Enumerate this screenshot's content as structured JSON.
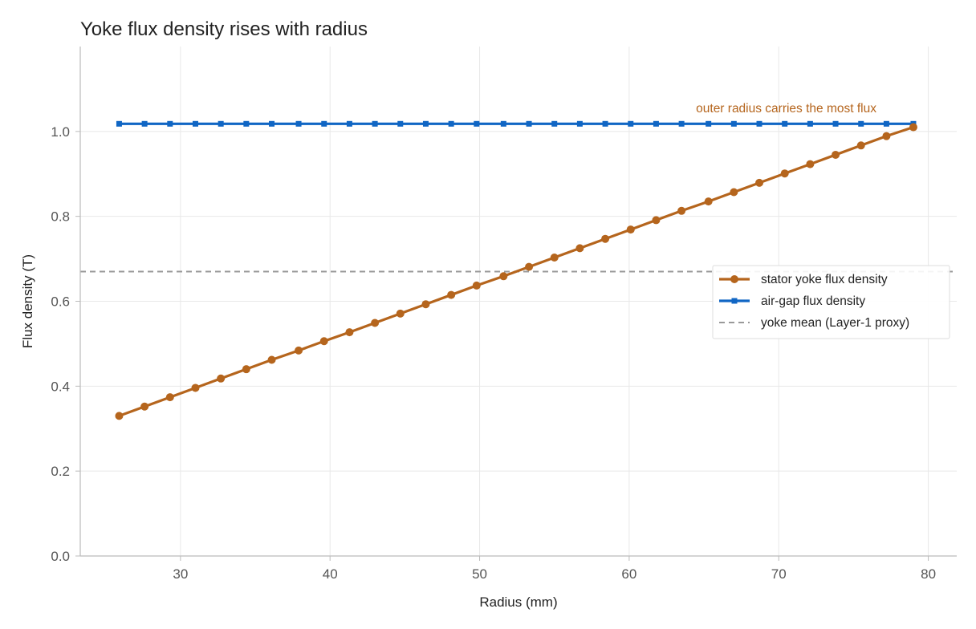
{
  "chart_data": {
    "type": "line",
    "title": "Yoke flux density rises with radius",
    "xlabel": "Radius (mm)",
    "ylabel": "Flux density (T)",
    "xlim": [
      23.3,
      81.9
    ],
    "ylim": [
      0,
      1.2
    ],
    "xticks": [
      30,
      40,
      50,
      60,
      70,
      80
    ],
    "yticks": [
      0.0,
      0.2,
      0.4,
      0.6,
      0.8,
      1.0
    ],
    "xtick_labels": [
      "30",
      "40",
      "50",
      "60",
      "70",
      "80"
    ],
    "ytick_labels": [
      "0.0",
      "0.2",
      "0.4",
      "0.6",
      "0.8",
      "1.0"
    ],
    "grid": true,
    "legend_position": "center-right",
    "x": [
      25.9,
      27.6,
      29.3,
      31.0,
      32.7,
      34.4,
      36.1,
      37.9,
      39.6,
      41.3,
      43.0,
      44.7,
      46.4,
      48.1,
      49.8,
      51.6,
      53.3,
      55.0,
      56.7,
      58.4,
      60.1,
      61.8,
      63.5,
      65.3,
      67.0,
      68.7,
      70.4,
      72.1,
      73.8,
      75.5,
      77.2,
      79.0
    ],
    "series": [
      {
        "name": "stator yoke flux density",
        "color": "#b5651d",
        "marker": "circle",
        "values": [
          0.33,
          0.352,
          0.374,
          0.396,
          0.418,
          0.44,
          0.462,
          0.484,
          0.506,
          0.527,
          0.549,
          0.571,
          0.593,
          0.615,
          0.637,
          0.659,
          0.681,
          0.703,
          0.725,
          0.747,
          0.769,
          0.791,
          0.813,
          0.835,
          0.857,
          0.879,
          0.901,
          0.923,
          0.945,
          0.967,
          0.989,
          1.01
        ]
      },
      {
        "name": "air-gap flux density",
        "color": "#1066c4",
        "marker": "square",
        "values": [
          1.018,
          1.018,
          1.018,
          1.018,
          1.018,
          1.018,
          1.018,
          1.018,
          1.018,
          1.018,
          1.018,
          1.018,
          1.018,
          1.018,
          1.018,
          1.018,
          1.018,
          1.018,
          1.018,
          1.018,
          1.018,
          1.018,
          1.018,
          1.018,
          1.018,
          1.018,
          1.018,
          1.018,
          1.018,
          1.018,
          1.018,
          1.018
        ]
      }
    ],
    "reference_line": {
      "name": "yoke mean (Layer-1 proxy)",
      "y": 0.67,
      "color": "#999999",
      "style": "dashed"
    },
    "annotation": {
      "text": "outer radius carries the most flux",
      "x": 70.5,
      "y": 1.045,
      "color": "#b5651d"
    }
  }
}
